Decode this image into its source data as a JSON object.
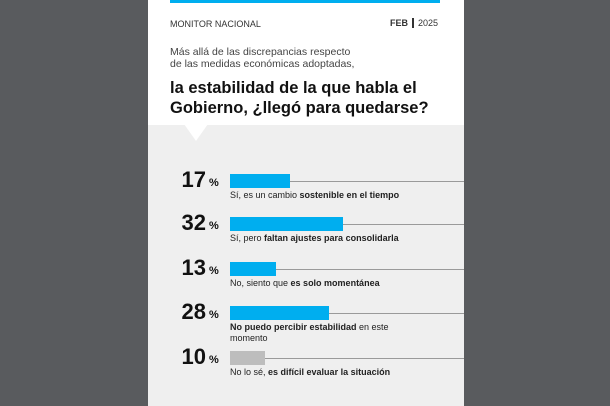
{
  "header": {
    "section": "MONITOR NACIONAL",
    "month": "FEB",
    "year": "2025"
  },
  "chart_data": {
    "type": "bar",
    "subtitle": [
      "Más allá de las discrepancias respecto",
      "de las medidas económicas adoptadas,"
    ],
    "title": [
      "la estabilidad de la que habla el",
      "Gobierno, ¿llegó para quedarse?"
    ],
    "unit": "%",
    "categories": [
      [
        {
          "text": "Sí, es un cambio ",
          "bold": false
        },
        {
          "text": "sostenible en el tiempo",
          "bold": true
        }
      ],
      [
        {
          "text": "Sí, pero ",
          "bold": false
        },
        {
          "text": "faltan ajustes para consolidarla",
          "bold": true
        }
      ],
      [
        {
          "text": "No, siento que ",
          "bold": false
        },
        {
          "text": "es solo momentánea",
          "bold": true
        }
      ],
      [
        {
          "text": "No puedo percibir estabilidad",
          "bold": true
        },
        {
          "text": " en este momento",
          "bold": false
        }
      ],
      [
        {
          "text": "No lo sé, ",
          "bold": false
        },
        {
          "text": "es difícil evaluar la situación",
          "bold": true
        }
      ]
    ],
    "values": [
      17,
      32,
      13,
      28,
      10
    ],
    "colors": [
      "#00aeef",
      "#00aeef",
      "#00aeef",
      "#00aeef",
      "#bdbdbd"
    ],
    "xlim": [
      0,
      100
    ]
  }
}
